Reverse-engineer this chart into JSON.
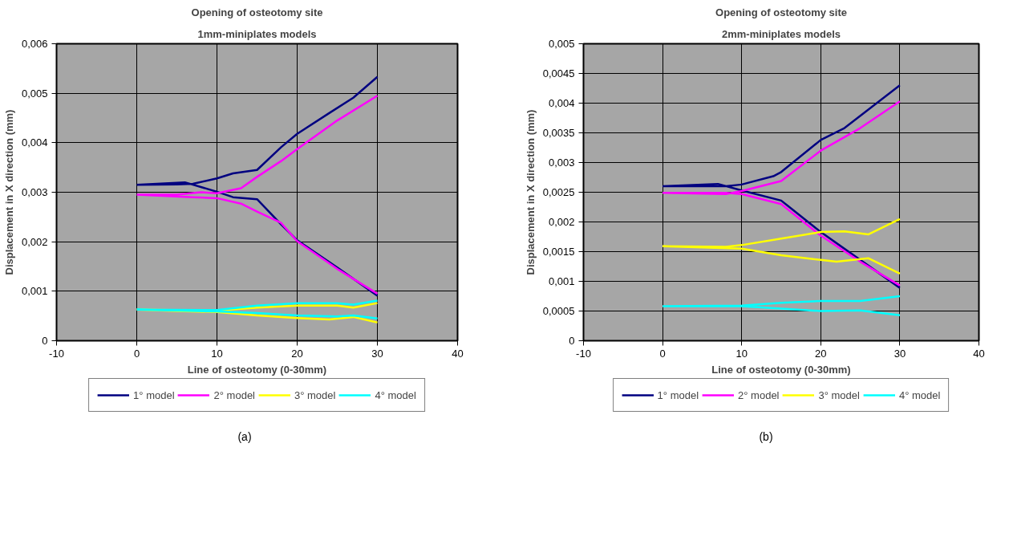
{
  "chart_data": [
    {
      "type": "line",
      "title": "Opening of osteotomy site",
      "subtitle": "1mm-miniplates models",
      "xlabel": "Line of osteotomy (0-30mm)",
      "ylabel": "Displacement in X direction (mm)",
      "xlim": [
        -10,
        40
      ],
      "xticks": [
        -10,
        0,
        10,
        20,
        30,
        40
      ],
      "ylim": [
        0,
        0.006
      ],
      "yticks": [
        0,
        {
          "value": 0.001,
          "label": "0,001"
        },
        {
          "value": 0.002,
          "label": "0,002"
        },
        {
          "value": 0.003,
          "label": "0,003"
        },
        {
          "value": 0.004,
          "label": "0,004"
        },
        {
          "value": 0.005,
          "label": "0,005"
        },
        {
          "value": 0.006,
          "label": "0,006"
        }
      ],
      "grid": true,
      "legend": "bottom",
      "line_style": "solid",
      "marker": "none",
      "annotations": [
        "(a)"
      ],
      "series": [
        {
          "name": "1° model",
          "color": "#000080",
          "x": [
            0,
            5,
            7,
            10,
            12,
            15,
            18,
            20,
            24,
            27,
            30,
            null,
            0,
            6,
            10,
            12,
            15,
            18,
            20,
            25,
            30
          ],
          "values": [
            0.00315,
            0.00316,
            0.00317,
            0.00328,
            0.00338,
            0.00345,
            0.00391,
            0.00418,
            0.0046,
            0.00491,
            0.00533,
            null,
            0.00315,
            0.0032,
            0.00301,
            0.0029,
            0.00286,
            0.00235,
            0.00203,
            0.00148,
            0.00091
          ]
        },
        {
          "name": "2° model",
          "color": "#ff00ff",
          "x": [
            0,
            5,
            8,
            10,
            13,
            15,
            18,
            20,
            25,
            30,
            null,
            0,
            7,
            10,
            13,
            15,
            18,
            20,
            25,
            30
          ],
          "values": [
            0.00295,
            0.00295,
            0.003,
            0.00298,
            0.00308,
            0.00331,
            0.00363,
            0.00387,
            0.00445,
            0.00495,
            null,
            0.00295,
            0.0029,
            0.00288,
            0.00277,
            0.00261,
            0.00238,
            0.00201,
            0.00145,
            0.00095
          ]
        },
        {
          "name": "3° model",
          "color": "#ffff00",
          "x": [
            0,
            10,
            15,
            20,
            25,
            27,
            30,
            null,
            0,
            5,
            10,
            15,
            20,
            24,
            27,
            30
          ],
          "values": [
            0.00063,
            0.00061,
            0.00067,
            0.00071,
            0.00071,
            0.00067,
            0.00076,
            null,
            0.00063,
            0.0006,
            0.00058,
            0.00051,
            0.00046,
            0.00043,
            0.00048,
            0.00037
          ]
        },
        {
          "name": "4° model",
          "color": "#00ffff",
          "x": [
            0,
            10,
            15,
            20,
            25,
            27,
            30,
            null,
            0,
            10,
            15,
            20,
            25,
            27,
            30
          ],
          "values": [
            0.00063,
            0.00062,
            0.00071,
            0.00076,
            0.00076,
            0.00073,
            0.00081,
            null,
            0.00063,
            0.00059,
            0.00056,
            0.00051,
            0.00049,
            0.00051,
            0.00045
          ]
        }
      ]
    },
    {
      "type": "line",
      "title": "Opening of osteotomy site",
      "subtitle": "2mm-miniplates models",
      "xlabel": "Line of osteotomy (0-30mm)",
      "ylabel": "Displacement in X direction (mm)",
      "xlim": [
        -10,
        40
      ],
      "xticks": [
        -10,
        0,
        10,
        20,
        30,
        40
      ],
      "ylim": [
        0,
        0.005
      ],
      "yticks": [
        0,
        {
          "value": 0.0005,
          "label": "0,0005"
        },
        {
          "value": 0.001,
          "label": "0,001"
        },
        {
          "value": 0.0015,
          "label": "0,0015"
        },
        {
          "value": 0.002,
          "label": "0,002"
        },
        {
          "value": 0.0025,
          "label": "0,0025"
        },
        {
          "value": 0.003,
          "label": "0,003"
        },
        {
          "value": 0.0035,
          "label": "0,0035"
        },
        {
          "value": 0.004,
          "label": "0,004"
        },
        {
          "value": 0.0045,
          "label": "0,0045"
        },
        {
          "value": 0.005,
          "label": "0,005"
        }
      ],
      "grid": true,
      "legend": "bottom",
      "line_style": "solid",
      "marker": "none",
      "annotations": [
        "(b)"
      ],
      "series": [
        {
          "name": "1° model",
          "color": "#000080",
          "x": [
            0,
            8,
            10,
            14,
            15,
            20,
            23,
            30,
            null,
            0,
            7,
            10,
            15,
            20,
            25,
            30
          ],
          "values": [
            0.0026,
            0.0026,
            0.00263,
            0.00277,
            0.00284,
            0.00338,
            0.00358,
            0.0043,
            null,
            0.0026,
            0.00264,
            0.00253,
            0.00236,
            0.00183,
            0.00136,
            0.00089
          ]
        },
        {
          "name": "2° model",
          "color": "#ff00ff",
          "x": [
            0,
            8,
            10,
            15,
            20,
            25,
            30,
            null,
            0,
            8,
            10,
            15,
            20,
            25,
            30
          ],
          "values": [
            0.00249,
            0.00247,
            0.00252,
            0.00269,
            0.0032,
            0.00358,
            0.00403,
            null,
            0.00249,
            0.00249,
            0.00247,
            0.0023,
            0.00177,
            0.00133,
            0.00093
          ]
        },
        {
          "name": "3° model",
          "color": "#ffff00",
          "x": [
            0,
            8,
            10,
            15,
            20,
            23,
            26,
            30,
            null,
            0,
            10,
            15,
            20,
            22,
            26,
            30
          ],
          "values": [
            0.00159,
            0.00158,
            0.00161,
            0.00172,
            0.00183,
            0.00184,
            0.00179,
            0.00205,
            null,
            0.00159,
            0.00155,
            0.00144,
            0.00136,
            0.00133,
            0.00139,
            0.00113
          ]
        },
        {
          "name": "4° model",
          "color": "#00ffff",
          "x": [
            0,
            10,
            15,
            20,
            25,
            30,
            null,
            0,
            10,
            15,
            20,
            25,
            30
          ],
          "values": [
            0.00058,
            0.00059,
            0.00064,
            0.00067,
            0.00067,
            0.00075,
            null,
            0.00058,
            0.00058,
            0.00054,
            0.0005,
            0.00051,
            0.00043
          ]
        }
      ]
    }
  ]
}
